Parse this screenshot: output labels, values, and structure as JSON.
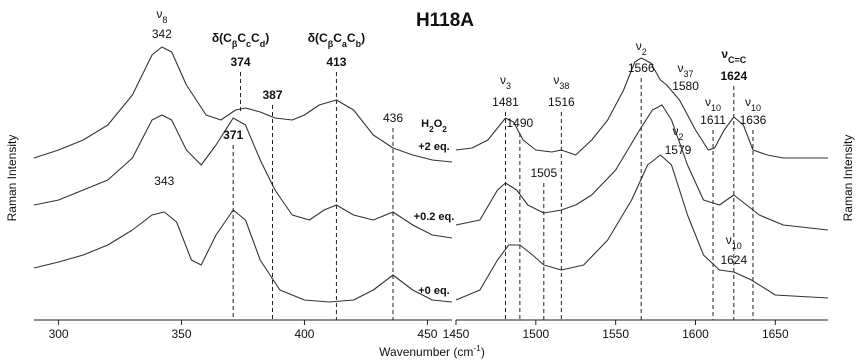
{
  "title": "H118A",
  "x_label": [
    {
      "t": "Wavenumber (cm"
    },
    {
      "sup": "-1"
    },
    {
      "t": ")"
    }
  ],
  "y_label": "Raman Intensity",
  "legend_title": [
    {
      "t": "H"
    },
    {
      "s": "2"
    },
    {
      "t": "O"
    },
    {
      "s": "2"
    }
  ],
  "chart_data": [
    {
      "type": "line",
      "xlim": [
        290,
        460
      ],
      "xticks": [
        300,
        350,
        400,
        450
      ],
      "ylim": [
        0,
        285
      ],
      "series": [
        {
          "name": "+2 eq.",
          "color": "#333333",
          "x": [
            290,
            300,
            310,
            320,
            330,
            338,
            342,
            346,
            352,
            360,
            366,
            372,
            376,
            382,
            388,
            395,
            400,
            406,
            413,
            420,
            428,
            436,
            444,
            452,
            460
          ],
          "values": [
            162,
            170,
            180,
            195,
            225,
            265,
            273,
            268,
            235,
            205,
            200,
            210,
            212,
            208,
            202,
            200,
            205,
            215,
            220,
            210,
            185,
            172,
            165,
            160,
            158
          ]
        },
        {
          "name": "+0.2 eq.",
          "color": "#333333",
          "x": [
            290,
            300,
            310,
            320,
            330,
            338,
            342,
            346,
            352,
            358,
            364,
            371,
            376,
            382,
            388,
            395,
            402,
            408,
            413,
            420,
            428,
            436,
            444,
            452,
            460
          ],
          "values": [
            115,
            120,
            130,
            140,
            162,
            200,
            205,
            200,
            170,
            155,
            175,
            202,
            195,
            160,
            130,
            105,
            100,
            110,
            115,
            105,
            100,
            108,
            95,
            85,
            82
          ]
        },
        {
          "name": "+0 eq.",
          "color": "#333333",
          "x": [
            290,
            300,
            310,
            320,
            330,
            338,
            343,
            348,
            354,
            358,
            364,
            371,
            376,
            382,
            390,
            400,
            410,
            420,
            428,
            436,
            444,
            452,
            460
          ],
          "values": [
            52,
            58,
            65,
            75,
            90,
            105,
            108,
            98,
            60,
            55,
            85,
            110,
            100,
            60,
            30,
            20,
            18,
            20,
            30,
            45,
            30,
            20,
            18
          ]
        }
      ],
      "annotations": [
        {
          "label": [
            {
              "t": "ν"
            },
            {
              "s": "8"
            }
          ],
          "x": 342,
          "color": "#111111",
          "bold": false,
          "dash": false
        },
        {
          "label": [
            {
              "t": "δ(C"
            },
            {
              "s": "β"
            },
            {
              "t": "C"
            },
            {
              "s": "c"
            },
            {
              "t": "C"
            },
            {
              "s": "d"
            },
            {
              "t": ")"
            }
          ],
          "x": 374,
          "color": "#8a3ff0",
          "bold": true,
          "dash": true
        },
        {
          "label": null,
          "x": 387,
          "color": "#8a3ff0",
          "bold": true,
          "dash": true
        },
        {
          "label": [
            {
              "t": "δ(C"
            },
            {
              "s": "β"
            },
            {
              "t": "C"
            },
            {
              "s": "a"
            },
            {
              "t": "C"
            },
            {
              "s": "b"
            },
            {
              "t": ")"
            }
          ],
          "x": 413,
          "color": "#f5870a",
          "bold": true,
          "dash": true
        },
        {
          "label": null,
          "x": 436,
          "color": "#111111",
          "bold": false,
          "dash": true
        },
        {
          "label": null,
          "x": 371,
          "color": "#8a3ff0",
          "bold": true,
          "dash": true
        },
        {
          "label": null,
          "x": 343,
          "color": "#111111",
          "bold": false,
          "dash": false
        }
      ]
    },
    {
      "type": "line",
      "xlim": [
        1450,
        1683
      ],
      "xticks": [
        1450,
        1500,
        1550,
        1600,
        1650
      ],
      "ylim": [
        0,
        285
      ],
      "series": [
        {
          "color": "#333333",
          "x": [
            1450,
            1460,
            1470,
            1476,
            1481,
            1486,
            1492,
            1500,
            1510,
            1516,
            1525,
            1535,
            1545,
            1555,
            1562,
            1566,
            1572,
            1578,
            1582,
            1590,
            1600,
            1608,
            1612,
            1618,
            1624,
            1630,
            1636,
            1645,
            1655,
            1683
          ],
          "values": [
            170,
            172,
            180,
            192,
            202,
            198,
            180,
            170,
            168,
            170,
            165,
            180,
            200,
            230,
            258,
            262,
            257,
            240,
            235,
            220,
            190,
            170,
            172,
            190,
            203,
            195,
            170,
            165,
            162,
            162
          ]
        },
        {
          "color": "#333333",
          "x": [
            1450,
            1465,
            1476,
            1481,
            1488,
            1495,
            1505,
            1516,
            1525,
            1535,
            1550,
            1565,
            1573,
            1579,
            1585,
            1595,
            1605,
            1615,
            1624,
            1632,
            1640,
            1655,
            1683
          ],
          "values": [
            95,
            100,
            130,
            137,
            130,
            115,
            107,
            110,
            115,
            125,
            150,
            190,
            210,
            215,
            200,
            155,
            120,
            115,
            125,
            115,
            105,
            95,
            90
          ]
        },
        {
          "color": "#333333",
          "x": [
            1450,
            1465,
            1476,
            1483,
            1490,
            1498,
            1505,
            1516,
            1530,
            1545,
            1560,
            1570,
            1578,
            1585,
            1595,
            1605,
            1615,
            1624,
            1635,
            1650,
            1683
          ],
          "values": [
            20,
            30,
            60,
            75,
            75,
            65,
            55,
            50,
            55,
            80,
            120,
            155,
            165,
            155,
            105,
            65,
            50,
            48,
            40,
            25,
            22
          ]
        }
      ],
      "annotations": [
        {
          "label": [
            {
              "t": "ν"
            },
            {
              "s": "3"
            }
          ],
          "x": 1481,
          "color": "#111111",
          "bold": false,
          "dash": true
        },
        {
          "label": null,
          "x": 1490,
          "color": "#111111",
          "bold": false,
          "dash": true
        },
        {
          "label": [
            {
              "t": "ν"
            },
            {
              "s": "38"
            }
          ],
          "x": 1516,
          "color": "#111111",
          "bold": false,
          "dash": true
        },
        {
          "label": [
            {
              "t": "ν"
            },
            {
              "s": "2"
            }
          ],
          "x": 1566,
          "color": "#111111",
          "bold": false,
          "dash": true
        },
        {
          "label": [
            {
              "t": "ν"
            },
            {
              "s": "37"
            }
          ],
          "x": 1580,
          "color": "#111111",
          "bold": false,
          "dash": false
        },
        {
          "label": [
            {
              "t": "ν"
            },
            {
              "s": "2"
            }
          ],
          "x": 1579,
          "color": "#111111",
          "bold": false,
          "dash": false
        },
        {
          "label": null,
          "x": 1505,
          "color": "#111111",
          "bold": false,
          "dash": true
        },
        {
          "label": [
            {
              "t": "ν"
            },
            {
              "s": "C=C"
            }
          ],
          "x": 1624,
          "color": "#f5870a",
          "bold": true,
          "dash": true
        },
        {
          "label": [
            {
              "t": "ν"
            },
            {
              "s": "10"
            }
          ],
          "x": 1611,
          "color": "#111111",
          "bold": false,
          "dash": true
        },
        {
          "label": [
            {
              "t": "ν"
            },
            {
              "s": "10"
            }
          ],
          "x": 1636,
          "color": "#111111",
          "bold": false,
          "dash": true
        },
        {
          "label": [
            {
              "t": "ν"
            },
            {
              "s": "10"
            }
          ],
          "x": 1624,
          "color": "#111111",
          "bold": false,
          "dash": false
        }
      ]
    }
  ]
}
